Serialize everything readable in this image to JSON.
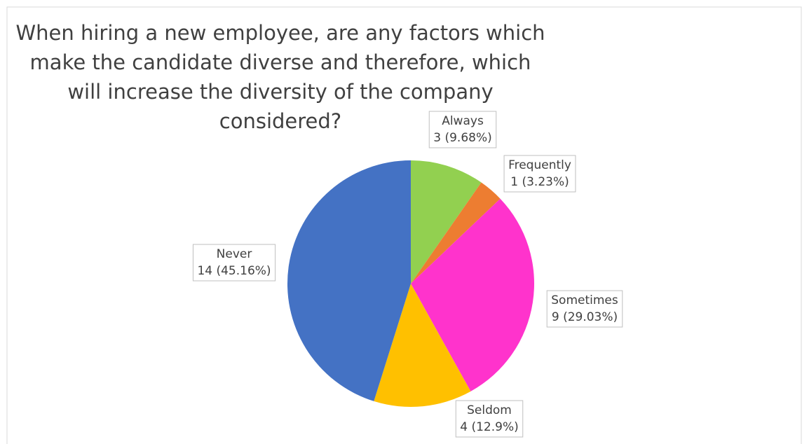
{
  "chart_data": {
    "type": "pie",
    "title": "When hiring a new employee,  are any factors which make the candidate diverse and therefore, which will increase the diversity of the company considered?",
    "categories": [
      "Always",
      "Frequently",
      "Sometimes",
      "Seldom",
      "Never"
    ],
    "values": [
      3,
      1,
      9,
      4,
      14
    ],
    "value_labels": [
      "3 (9.68%)",
      "1 (3.23%)",
      "9 (29.03%)",
      "4 (12.9%)",
      "14 (45.16%)"
    ],
    "colors": [
      "#92d050",
      "#ed7d31",
      "#ff33cc",
      "#ffc000",
      "#4472c4"
    ]
  }
}
